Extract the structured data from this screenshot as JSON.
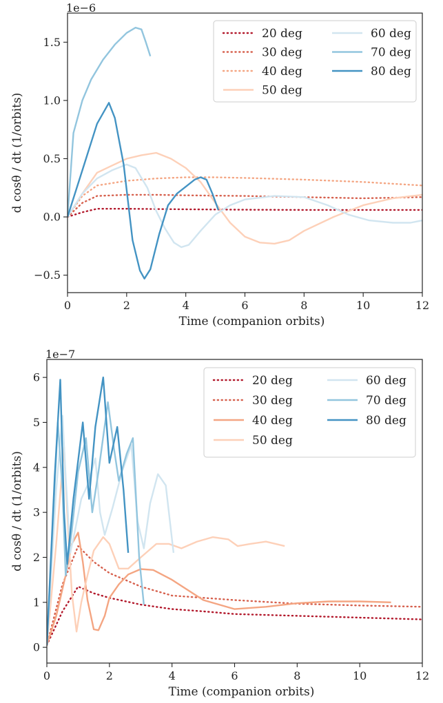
{
  "chart_data": [
    {
      "type": "line",
      "xlabel": "Time (companion orbits)",
      "ylabel": "d cosθ / dt (1/orbits)",
      "offset_text": "1e−6",
      "xlim": [
        0,
        12
      ],
      "ylim": [
        -0.65,
        1.75
      ],
      "xticks": [
        0,
        2,
        4,
        6,
        8,
        10,
        12
      ],
      "xtick_labels": [
        "0",
        "2",
        "4",
        "6",
        "8",
        "10",
        "12"
      ],
      "yticks": [
        -0.5,
        0.0,
        0.5,
        1.0,
        1.5
      ],
      "ytick_labels": [
        "−0.5",
        "0.0",
        "0.5",
        "1.0",
        "1.5"
      ],
      "legend": {
        "location": "top-right",
        "columns": 2
      },
      "series": [
        {
          "name": "20 deg",
          "color": "#b2182b",
          "style": "dotted",
          "points": [
            [
              0,
              0
            ],
            [
              0.5,
              0.04
            ],
            [
              1,
              0.07
            ],
            [
              2,
              0.07
            ],
            [
              4,
              0.065
            ],
            [
              6,
              0.062
            ],
            [
              8,
              0.06
            ],
            [
              10,
              0.06
            ],
            [
              12,
              0.06
            ]
          ]
        },
        {
          "name": "30 deg",
          "color": "#d6604d",
          "style": "dotted",
          "points": [
            [
              0,
              0
            ],
            [
              0.5,
              0.12
            ],
            [
              1,
              0.18
            ],
            [
              2,
              0.19
            ],
            [
              3,
              0.19
            ],
            [
              4,
              0.185
            ],
            [
              6,
              0.18
            ],
            [
              8,
              0.17
            ],
            [
              10,
              0.16
            ],
            [
              12,
              0.17
            ]
          ]
        },
        {
          "name": "40 deg",
          "color": "#f4a582",
          "style": "dotted",
          "points": [
            [
              0,
              0
            ],
            [
              0.5,
              0.18
            ],
            [
              1,
              0.27
            ],
            [
              2,
              0.31
            ],
            [
              3,
              0.33
            ],
            [
              4,
              0.34
            ],
            [
              5,
              0.34
            ],
            [
              6,
              0.335
            ],
            [
              8,
              0.32
            ],
            [
              10,
              0.3
            ],
            [
              12,
              0.27
            ]
          ]
        },
        {
          "name": "50 deg",
          "color": "#fdd0b8",
          "style": "solid",
          "points": [
            [
              0,
              0
            ],
            [
              0.5,
              0.2
            ],
            [
              1,
              0.38
            ],
            [
              1.5,
              0.44
            ],
            [
              2,
              0.5
            ],
            [
              2.5,
              0.53
            ],
            [
              3,
              0.55
            ],
            [
              3.5,
              0.5
            ],
            [
              4,
              0.42
            ],
            [
              4.5,
              0.3
            ],
            [
              5,
              0.12
            ],
            [
              5.5,
              -0.05
            ],
            [
              6,
              -0.17
            ],
            [
              6.5,
              -0.22
            ],
            [
              7,
              -0.23
            ],
            [
              7.5,
              -0.2
            ],
            [
              8,
              -0.12
            ],
            [
              9,
              0
            ],
            [
              10,
              0.1
            ],
            [
              11,
              0.16
            ],
            [
              12,
              0.19
            ]
          ]
        },
        {
          "name": "60 deg",
          "color": "#d1e5f0",
          "style": "solid",
          "points": [
            [
              0,
              0
            ],
            [
              0.5,
              0.2
            ],
            [
              1,
              0.33
            ],
            [
              1.5,
              0.4
            ],
            [
              2,
              0.45
            ],
            [
              2.3,
              0.42
            ],
            [
              2.7,
              0.25
            ],
            [
              3,
              0.05
            ],
            [
              3.3,
              -0.1
            ],
            [
              3.6,
              -0.22
            ],
            [
              3.85,
              -0.26
            ],
            [
              4.1,
              -0.24
            ],
            [
              4.5,
              -0.12
            ],
            [
              5,
              0.02
            ],
            [
              5.5,
              0.1
            ],
            [
              6,
              0.15
            ],
            [
              7,
              0.18
            ],
            [
              8,
              0.17
            ],
            [
              8.8,
              0.1
            ],
            [
              9.5,
              0.02
            ],
            [
              10.2,
              -0.03
            ],
            [
              11,
              -0.05
            ],
            [
              11.6,
              -0.05
            ],
            [
              12,
              -0.03
            ]
          ]
        },
        {
          "name": "70 deg",
          "color": "#92c5de",
          "style": "solid",
          "points": [
            [
              0,
              0
            ],
            [
              0.2,
              0.72
            ],
            [
              0.5,
              1.0
            ],
            [
              0.8,
              1.18
            ],
            [
              1.2,
              1.35
            ],
            [
              1.6,
              1.48
            ],
            [
              2,
              1.58
            ],
            [
              2.3,
              1.625
            ],
            [
              2.5,
              1.61
            ],
            [
              2.65,
              1.5
            ],
            [
              2.8,
              1.38
            ]
          ]
        },
        {
          "name": "80 deg",
          "color": "#4393c3",
          "style": "solid",
          "points": [
            [
              0,
              0
            ],
            [
              0.5,
              0.4
            ],
            [
              1,
              0.8
            ],
            [
              1.4,
              0.98
            ],
            [
              1.6,
              0.85
            ],
            [
              1.9,
              0.45
            ],
            [
              2.2,
              -0.2
            ],
            [
              2.45,
              -0.46
            ],
            [
              2.6,
              -0.53
            ],
            [
              2.8,
              -0.45
            ],
            [
              3.1,
              -0.15
            ],
            [
              3.4,
              0.1
            ],
            [
              3.7,
              0.2
            ],
            [
              4,
              0.26
            ],
            [
              4.3,
              0.32
            ],
            [
              4.5,
              0.34
            ],
            [
              4.7,
              0.32
            ],
            [
              4.9,
              0.2
            ],
            [
              5.1,
              0.06
            ]
          ]
        }
      ]
    },
    {
      "type": "line",
      "xlabel": "Time (companion orbits)",
      "ylabel": "d cosθ / dt (1/orbits)",
      "offset_text": "1e−7",
      "xlim": [
        0,
        12
      ],
      "ylim": [
        -0.35,
        6.4
      ],
      "xticks": [
        0,
        2,
        4,
        6,
        8,
        10,
        12
      ],
      "xtick_labels": [
        "0",
        "2",
        "4",
        "6",
        "8",
        "10",
        "12"
      ],
      "yticks": [
        0,
        1,
        2,
        3,
        4,
        5,
        6
      ],
      "ytick_labels": [
        "0",
        "1",
        "2",
        "3",
        "4",
        "5",
        "6"
      ],
      "legend": {
        "location": "top-right",
        "columns": 2
      },
      "series": [
        {
          "name": "20 deg",
          "color": "#b2182b",
          "style": "dotted",
          "points": [
            [
              0,
              0.05
            ],
            [
              0.5,
              0.8
            ],
            [
              1,
              1.35
            ],
            [
              1.5,
              1.2
            ],
            [
              2,
              1.1
            ],
            [
              3,
              0.95
            ],
            [
              4,
              0.85
            ],
            [
              5,
              0.8
            ],
            [
              6,
              0.74
            ],
            [
              8,
              0.7
            ],
            [
              10,
              0.66
            ],
            [
              12,
              0.62
            ]
          ]
        },
        {
          "name": "30 deg",
          "color": "#d6604d",
          "style": "dotted",
          "points": [
            [
              0,
              0.05
            ],
            [
              0.5,
              1.4
            ],
            [
              1,
              2.25
            ],
            [
              1.5,
              1.9
            ],
            [
              2,
              1.65
            ],
            [
              3,
              1.35
            ],
            [
              4,
              1.15
            ],
            [
              6,
              1.05
            ],
            [
              8,
              0.97
            ],
            [
              10,
              0.93
            ],
            [
              12,
              0.9
            ]
          ]
        },
        {
          "name": "40 deg",
          "color": "#f4a582",
          "style": "solid",
          "points": [
            [
              0,
              0.05
            ],
            [
              0.3,
              0.7
            ],
            [
              0.6,
              1.6
            ],
            [
              0.8,
              2.3
            ],
            [
              1,
              2.55
            ],
            [
              1.15,
              1.9
            ],
            [
              1.3,
              1.05
            ],
            [
              1.5,
              0.4
            ],
            [
              1.65,
              0.38
            ],
            [
              1.85,
              0.7
            ],
            [
              2,
              1.1
            ],
            [
              2.3,
              1.4
            ],
            [
              2.6,
              1.62
            ],
            [
              3,
              1.74
            ],
            [
              3.4,
              1.72
            ],
            [
              4,
              1.5
            ],
            [
              5,
              1.05
            ],
            [
              6,
              0.85
            ],
            [
              7,
              0.9
            ],
            [
              8,
              0.98
            ],
            [
              9,
              1.02
            ],
            [
              10,
              1.02
            ],
            [
              11,
              1.0
            ]
          ]
        },
        {
          "name": "50 deg",
          "color": "#fdd0b8",
          "style": "solid",
          "points": [
            [
              0,
              0.05
            ],
            [
              0.3,
              2.3
            ],
            [
              0.45,
              3.6
            ],
            [
              0.55,
              4.45
            ],
            [
              0.65,
              3.0
            ],
            [
              0.8,
              1.2
            ],
            [
              0.95,
              0.35
            ],
            [
              1.1,
              1.0
            ],
            [
              1.3,
              1.6
            ],
            [
              1.5,
              2.15
            ],
            [
              1.8,
              2.45
            ],
            [
              2,
              2.3
            ],
            [
              2.3,
              1.75
            ],
            [
              2.6,
              1.75
            ],
            [
              3,
              2.0
            ],
            [
              3.5,
              2.3
            ],
            [
              3.9,
              2.3
            ],
            [
              4.3,
              2.2
            ],
            [
              4.8,
              2.35
            ],
            [
              5.3,
              2.45
            ],
            [
              5.8,
              2.4
            ],
            [
              6.1,
              2.25
            ],
            [
              6.5,
              2.3
            ],
            [
              7,
              2.35
            ],
            [
              7.6,
              2.25
            ]
          ]
        },
        {
          "name": "60 deg",
          "color": "#d1e5f0",
          "style": "solid",
          "points": [
            [
              0,
              0.05
            ],
            [
              0.3,
              3.5
            ],
            [
              0.5,
              5.15
            ],
            [
              0.6,
              3.8
            ],
            [
              0.75,
              2.1
            ],
            [
              0.9,
              2.6
            ],
            [
              1.1,
              3.3
            ],
            [
              1.3,
              3.6
            ],
            [
              1.55,
              4.2
            ],
            [
              1.7,
              3.0
            ],
            [
              1.85,
              2.5
            ],
            [
              2.1,
              3.1
            ],
            [
              2.4,
              3.9
            ],
            [
              2.7,
              4.5
            ],
            [
              2.9,
              2.8
            ],
            [
              3.1,
              2.2
            ],
            [
              3.3,
              3.2
            ],
            [
              3.55,
              3.85
            ],
            [
              3.8,
              3.6
            ],
            [
              4.05,
              2.1
            ]
          ]
        },
        {
          "name": "70 deg",
          "color": "#92c5de",
          "style": "solid",
          "points": [
            [
              0,
              0.05
            ],
            [
              0.35,
              5.0
            ],
            [
              0.5,
              3.5
            ],
            [
              0.6,
              1.6
            ],
            [
              0.8,
              2.6
            ],
            [
              1,
              3.9
            ],
            [
              1.25,
              4.65
            ],
            [
              1.45,
              3.0
            ],
            [
              1.65,
              3.9
            ],
            [
              1.95,
              5.45
            ],
            [
              2.15,
              4.4
            ],
            [
              2.3,
              3.7
            ],
            [
              2.55,
              4.3
            ],
            [
              2.75,
              4.65
            ],
            [
              2.95,
              2.0
            ],
            [
              3.1,
              0.95
            ]
          ]
        },
        {
          "name": "80 deg",
          "color": "#4393c3",
          "style": "solid",
          "points": [
            [
              0,
              0.05
            ],
            [
              0.25,
              3.8
            ],
            [
              0.43,
              5.95
            ],
            [
              0.55,
              3.0
            ],
            [
              0.65,
              1.85
            ],
            [
              0.85,
              3.3
            ],
            [
              1.15,
              5.0
            ],
            [
              1.35,
              3.3
            ],
            [
              1.55,
              4.9
            ],
            [
              1.8,
              6.0
            ],
            [
              2,
              4.1
            ],
            [
              2.25,
              4.9
            ],
            [
              2.45,
              3.5
            ],
            [
              2.6,
              2.1
            ]
          ]
        }
      ]
    }
  ]
}
